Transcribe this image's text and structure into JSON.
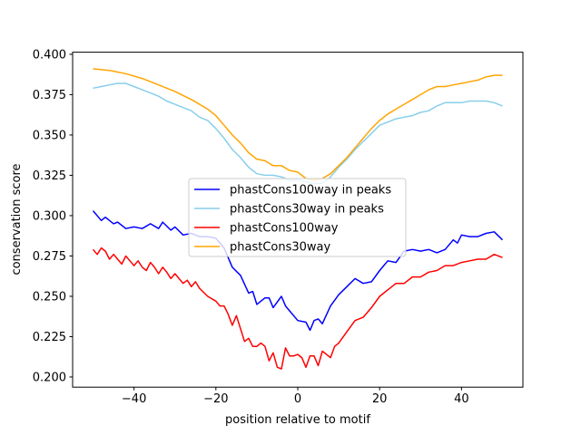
{
  "chart_data": {
    "type": "line",
    "title": "",
    "xlabel": "position relative to motif",
    "ylabel": "conservation score",
    "xlim": [
      -55,
      55
    ],
    "ylim": [
      0.1937,
      0.4013
    ],
    "xticks": [
      -40,
      -20,
      0,
      20,
      40
    ],
    "xtick_labels": [
      "−40",
      "−20",
      "0",
      "20",
      "40"
    ],
    "yticks": [
      0.2,
      0.225,
      0.25,
      0.275,
      0.3,
      0.325,
      0.35,
      0.375,
      0.4
    ],
    "ytick_labels": [
      "0.200",
      "0.225",
      "0.250",
      "0.275",
      "0.300",
      "0.325",
      "0.350",
      "0.375",
      "0.400"
    ],
    "grid": false,
    "legend_placement": "center",
    "series": [
      {
        "name": "phastCons100way in peaks",
        "color": "#0000ff",
        "x": [
          -50,
          -48,
          -47,
          -45,
          -44,
          -42,
          -40,
          -38,
          -36,
          -34,
          -33,
          -31,
          -30,
          -28,
          -26,
          -24,
          -22,
          -20,
          -18,
          -16,
          -14,
          -12,
          -11,
          -10,
          -8,
          -7,
          -6,
          -4,
          -3,
          -2,
          0,
          2,
          3,
          4,
          5,
          6,
          8,
          10,
          12,
          14,
          16,
          18,
          20,
          22,
          24,
          26,
          28,
          30,
          32,
          34,
          36,
          38,
          39,
          40,
          42,
          44,
          46,
          48,
          50
        ],
        "y": [
          0.303,
          0.297,
          0.299,
          0.295,
          0.296,
          0.292,
          0.293,
          0.292,
          0.295,
          0.292,
          0.296,
          0.291,
          0.293,
          0.288,
          0.289,
          0.287,
          0.287,
          0.286,
          0.28,
          0.268,
          0.263,
          0.252,
          0.253,
          0.245,
          0.249,
          0.249,
          0.243,
          0.25,
          0.244,
          0.241,
          0.235,
          0.234,
          0.229,
          0.235,
          0.236,
          0.233,
          0.244,
          0.251,
          0.256,
          0.261,
          0.258,
          0.259,
          0.266,
          0.272,
          0.271,
          0.278,
          0.279,
          0.278,
          0.279,
          0.277,
          0.279,
          0.285,
          0.283,
          0.288,
          0.287,
          0.287,
          0.289,
          0.29,
          0.285
        ]
      },
      {
        "name": "phastCons30way in peaks",
        "color": "#87ceeb",
        "x": [
          -50,
          -48,
          -46,
          -44,
          -42,
          -40,
          -38,
          -36,
          -34,
          -32,
          -30,
          -28,
          -26,
          -24,
          -22,
          -20,
          -18,
          -16,
          -14,
          -12,
          -10,
          -8,
          -6,
          -4,
          -2,
          0,
          2,
          4,
          6,
          8,
          10,
          12,
          14,
          16,
          18,
          20,
          22,
          24,
          26,
          28,
          30,
          32,
          34,
          36,
          38,
          40,
          42,
          44,
          46,
          48,
          50
        ],
        "y": [
          0.379,
          0.38,
          0.381,
          0.382,
          0.382,
          0.38,
          0.378,
          0.376,
          0.374,
          0.371,
          0.369,
          0.367,
          0.365,
          0.361,
          0.359,
          0.354,
          0.348,
          0.341,
          0.336,
          0.33,
          0.326,
          0.325,
          0.325,
          0.324,
          0.322,
          0.322,
          0.321,
          0.32,
          0.32,
          0.324,
          0.33,
          0.335,
          0.341,
          0.346,
          0.351,
          0.356,
          0.358,
          0.36,
          0.361,
          0.362,
          0.364,
          0.365,
          0.368,
          0.37,
          0.37,
          0.37,
          0.371,
          0.371,
          0.371,
          0.37,
          0.368
        ]
      },
      {
        "name": "phastCons100way",
        "color": "#ff0000",
        "x": [
          -50,
          -49,
          -48,
          -47,
          -46,
          -45,
          -44,
          -43,
          -42,
          -41,
          -40,
          -39,
          -38,
          -37,
          -36,
          -35,
          -34,
          -33,
          -32,
          -31,
          -30,
          -29,
          -28,
          -27,
          -26,
          -25,
          -24,
          -22,
          -20,
          -19,
          -18,
          -17,
          -16,
          -15,
          -14,
          -13,
          -12,
          -11,
          -10,
          -9,
          -8,
          -7,
          -6,
          -5,
          -4,
          -3,
          -2,
          -1,
          0,
          1,
          2,
          3,
          4,
          5,
          6,
          7,
          8,
          9,
          10,
          12,
          14,
          16,
          18,
          20,
          22,
          24,
          26,
          28,
          30,
          32,
          34,
          36,
          38,
          40,
          42,
          44,
          46,
          48,
          50
        ],
        "y": [
          0.279,
          0.276,
          0.28,
          0.278,
          0.273,
          0.276,
          0.273,
          0.27,
          0.275,
          0.272,
          0.269,
          0.272,
          0.268,
          0.266,
          0.271,
          0.268,
          0.264,
          0.268,
          0.265,
          0.261,
          0.264,
          0.261,
          0.258,
          0.26,
          0.256,
          0.259,
          0.255,
          0.25,
          0.247,
          0.244,
          0.244,
          0.239,
          0.232,
          0.238,
          0.23,
          0.222,
          0.224,
          0.219,
          0.219,
          0.221,
          0.219,
          0.21,
          0.215,
          0.206,
          0.205,
          0.218,
          0.213,
          0.213,
          0.214,
          0.212,
          0.206,
          0.213,
          0.213,
          0.207,
          0.216,
          0.214,
          0.212,
          0.219,
          0.221,
          0.228,
          0.235,
          0.237,
          0.243,
          0.25,
          0.254,
          0.258,
          0.258,
          0.262,
          0.262,
          0.265,
          0.266,
          0.269,
          0.269,
          0.271,
          0.272,
          0.273,
          0.273,
          0.276,
          0.274
        ]
      },
      {
        "name": "phastCons30way",
        "color": "#ffa500",
        "x": [
          -50,
          -46,
          -42,
          -38,
          -34,
          -30,
          -26,
          -22,
          -20,
          -18,
          -16,
          -14,
          -12,
          -10,
          -8,
          -6,
          -4,
          -2,
          0,
          2,
          4,
          6,
          8,
          10,
          12,
          14,
          16,
          18,
          20,
          22,
          24,
          26,
          28,
          30,
          32,
          34,
          36,
          38,
          40,
          42,
          44,
          46,
          48,
          50
        ],
        "y": [
          0.391,
          0.39,
          0.388,
          0.385,
          0.381,
          0.377,
          0.372,
          0.366,
          0.362,
          0.356,
          0.35,
          0.345,
          0.339,
          0.335,
          0.334,
          0.331,
          0.331,
          0.328,
          0.327,
          0.323,
          0.322,
          0.323,
          0.326,
          0.331,
          0.336,
          0.342,
          0.348,
          0.354,
          0.359,
          0.363,
          0.366,
          0.369,
          0.372,
          0.375,
          0.378,
          0.38,
          0.38,
          0.381,
          0.382,
          0.383,
          0.384,
          0.386,
          0.387,
          0.387
        ]
      }
    ]
  }
}
